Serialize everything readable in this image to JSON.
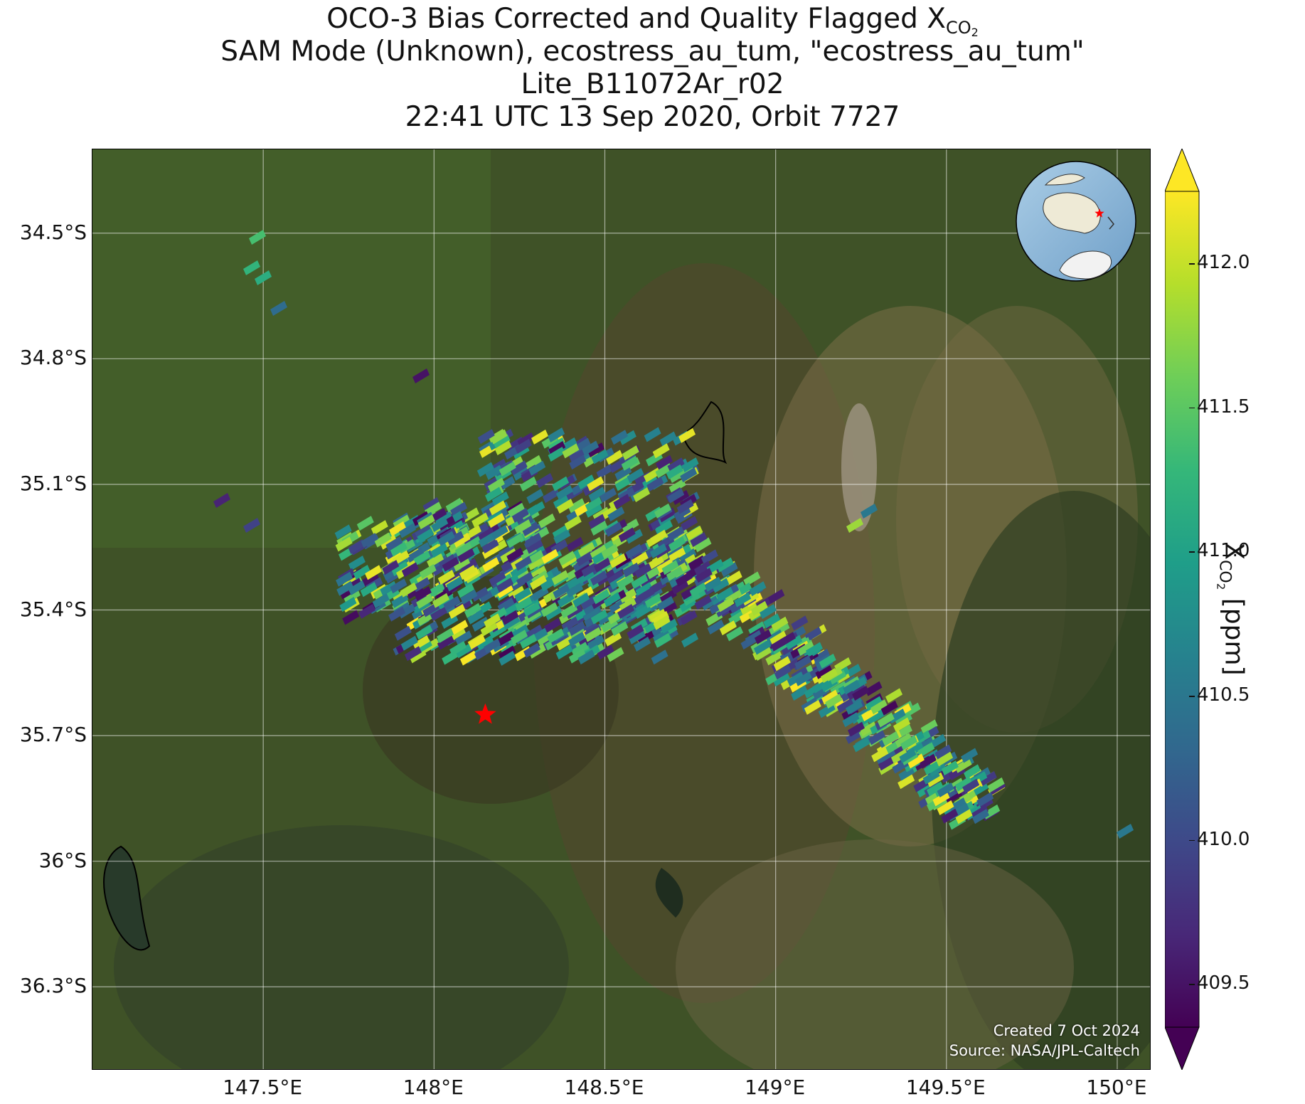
{
  "title": {
    "line1_prefix": "OCO-3 Bias Corrected and Quality Flagged X",
    "line1_sub": "CO",
    "line1_sub2": "2",
    "line2": "SAM Mode (Unknown), ecostress_au_tum, \"ecostress_au_tum\"",
    "line3": "Lite_B11072Ar_r02",
    "line4": "22:41 UTC 13 Sep 2020, Orbit 7727"
  },
  "axes": {
    "lat_labels": [
      "34.5°S",
      "34.8°S",
      "35.1°S",
      "35.4°S",
      "35.7°S",
      "36°S",
      "36.3°S"
    ],
    "lon_labels": [
      "147.5°E",
      "148°E",
      "148.5°E",
      "149°E",
      "149.5°E",
      "150°E"
    ]
  },
  "credits": {
    "created": "Created 7 Oct 2024",
    "source": "Source: NASA/JPL-Caltech"
  },
  "colorbar": {
    "label_prefix": "X",
    "label_sub": "CO",
    "label_sub2": "2",
    "label_suffix": " [ppm]",
    "ticks": [
      "412.0",
      "411.5",
      "411.0",
      "410.5",
      "410.0",
      "409.5"
    ],
    "range": [
      409.35,
      412.25
    ],
    "colormap": "viridis",
    "extend": "both"
  },
  "map": {
    "type": "satellite basemap with XCO2 footprints",
    "lon_range": [
      147.0,
      150.1
    ],
    "lat_range": [
      -36.5,
      -34.3
    ],
    "target_marker": {
      "lon": 148.15,
      "lat": -35.65,
      "color": "#ff0000",
      "shape": "star"
    },
    "inset_globe": {
      "marker_color": "#ff0000"
    },
    "colors": {
      "grid": "#ffffff",
      "frame": "#000000"
    }
  }
}
